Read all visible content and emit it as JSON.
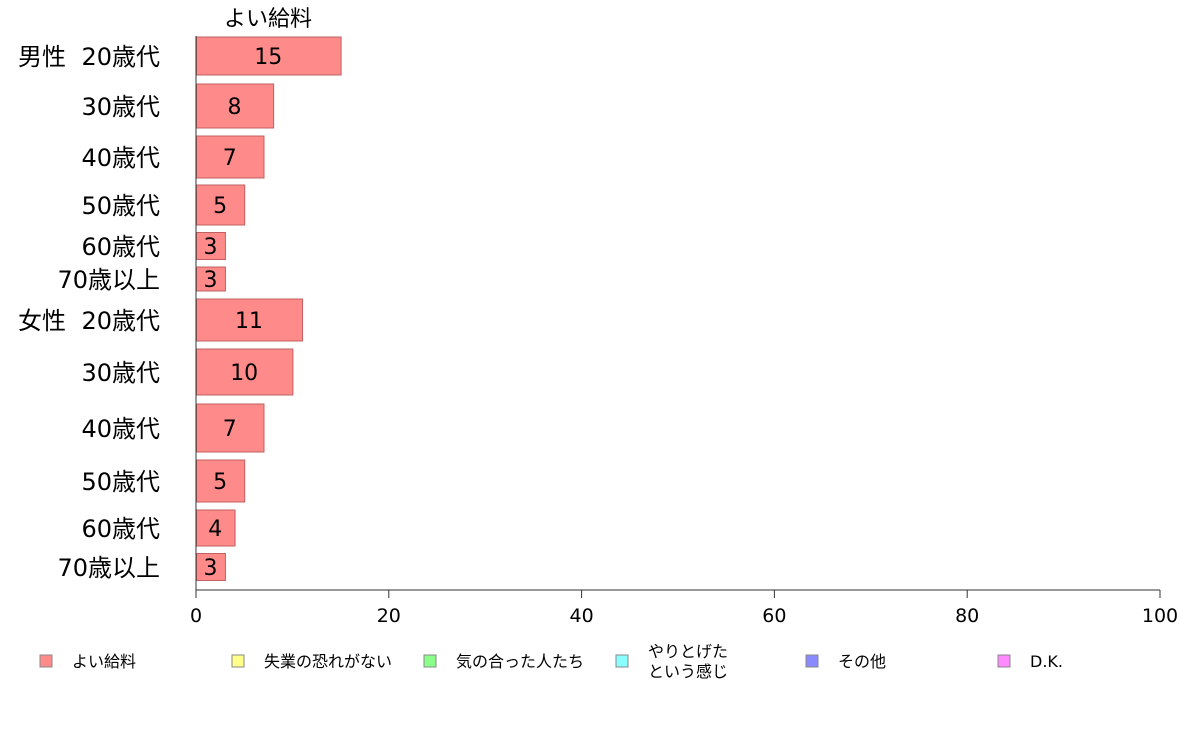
{
  "chart_data": {
    "type": "bar",
    "orientation": "horizontal",
    "column_title": "よい給料",
    "groups": [
      {
        "label": "男性",
        "categories": [
          "20歳代",
          "30歳代",
          "40歳代",
          "50歳代",
          "60歳代",
          "70歳以上"
        ],
        "values": [
          15,
          8,
          7,
          5,
          3,
          3
        ]
      },
      {
        "label": "女性",
        "categories": [
          "20歳代",
          "30歳代",
          "40歳代",
          "50歳代",
          "60歳代",
          "70歳以上"
        ],
        "values": [
          11,
          10,
          7,
          5,
          4,
          3
        ]
      }
    ],
    "xlim": [
      0,
      100
    ],
    "xticks": [
      0,
      20,
      40,
      60,
      80,
      100
    ],
    "grid": false,
    "legend_position": "bottom",
    "legend": [
      {
        "label": "よい給料",
        "color": "#ff8a8a"
      },
      {
        "label": "失業の恐れがない",
        "color": "#ffff8a"
      },
      {
        "label": "気の合った人たち",
        "color": "#8aff8a"
      },
      {
        "label": "やりとげた\nという感じ",
        "color": "#8affff"
      },
      {
        "label": "その他",
        "color": "#8a8aff"
      },
      {
        "label": "D.K.",
        "color": "#ff8aff"
      }
    ],
    "bar_color": "#ff8a8a",
    "bar_stroke": "#c06060"
  }
}
